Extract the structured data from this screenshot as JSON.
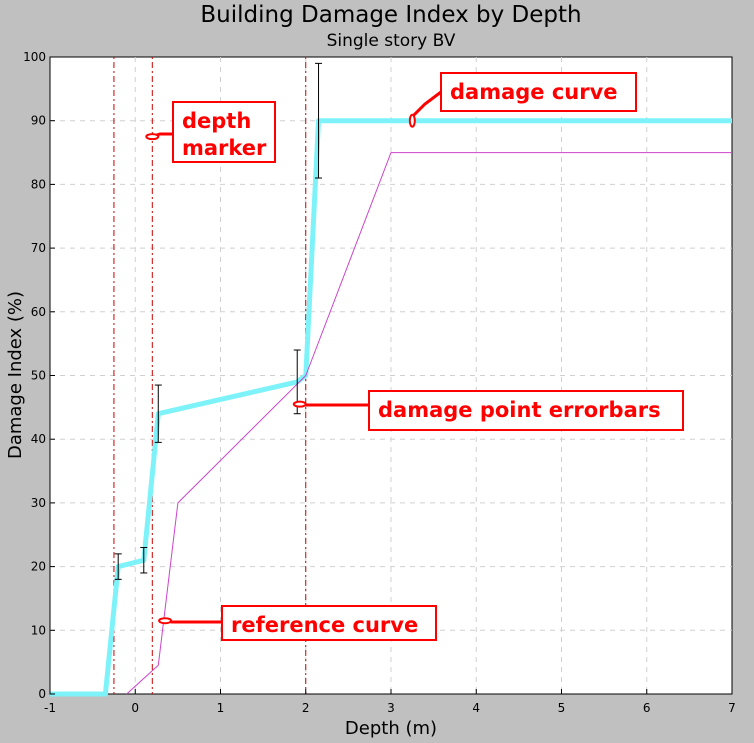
{
  "chart_data": {
    "type": "line",
    "title": "Building Damage Index by Depth",
    "subtitle": "Single story BV",
    "xlabel": "Depth (m)",
    "ylabel": "Damage Index (%)",
    "xlim": [
      -1,
      7
    ],
    "ylim": [
      0,
      100
    ],
    "x_ticks": [
      -1,
      0,
      1,
      2,
      3,
      4,
      5,
      6,
      7
    ],
    "y_ticks": [
      0,
      10,
      20,
      30,
      40,
      50,
      60,
      70,
      80,
      90,
      100
    ],
    "grid": true,
    "colors": {
      "damage_curve": "#7df3f9",
      "reference_curve": "#cc44cc",
      "depth_marker": "#cc0000",
      "errorbar": "#000000",
      "callout": "#ff0000"
    },
    "series": [
      {
        "key": "damage_curve",
        "x": [
          -1,
          -0.35,
          -0.2,
          0.1,
          0.27,
          1.9,
          2.0,
          2.15,
          7
        ],
        "y": [
          0,
          0,
          20,
          21,
          44,
          49,
          50,
          90,
          90
        ]
      },
      {
        "key": "reference_curve",
        "x": [
          -0.1,
          0.27,
          0.5,
          2.0,
          3.0,
          7
        ],
        "y": [
          0,
          4.5,
          30,
          50,
          85,
          85
        ]
      }
    ],
    "errorbars": [
      {
        "x": -0.2,
        "low": 18,
        "high": 22
      },
      {
        "x": 0.1,
        "low": 19,
        "high": 23
      },
      {
        "x": 0.27,
        "low": 39.5,
        "high": 48.5
      },
      {
        "x": 1.9,
        "low": 44,
        "high": 54
      },
      {
        "x": 2.15,
        "low": 81,
        "high": 99
      }
    ],
    "depth_markers": [
      -0.25,
      0.2,
      2.0
    ],
    "annotations": [
      {
        "key": "damage_curve",
        "lines": [
          "damage curve"
        ],
        "target_x": 3.25,
        "target_y": 90
      },
      {
        "key": "depth_marker",
        "lines": [
          "depth",
          "marker"
        ],
        "target_x": 0.2,
        "target_y": 87.5
      },
      {
        "key": "errorbars",
        "lines": [
          "damage point errorbars"
        ],
        "target_x": 1.93,
        "target_y": 45.5
      },
      {
        "key": "reference_curve",
        "lines": [
          "reference curve"
        ],
        "target_x": 0.35,
        "target_y": 11.5
      }
    ]
  }
}
